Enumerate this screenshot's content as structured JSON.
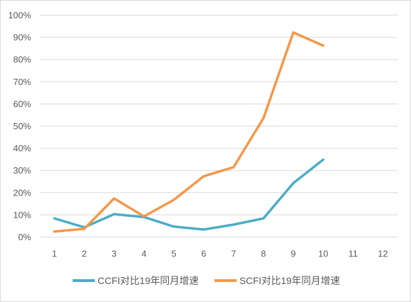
{
  "chart_data": {
    "type": "line",
    "categories": [
      "1",
      "2",
      "3",
      "4",
      "5",
      "6",
      "7",
      "8",
      "9",
      "10",
      "11",
      "12"
    ],
    "y_tick_labels": [
      "0%",
      "10%",
      "20%",
      "30%",
      "40%",
      "50%",
      "60%",
      "70%",
      "80%",
      "90%",
      "100%"
    ],
    "ylim": [
      0,
      100
    ],
    "grid": "horizontal",
    "legend_position": "bottom",
    "series": [
      {
        "name": "CCFI对比19年同月增速",
        "color": "#4BACC6",
        "values": [
          8.4,
          4.4,
          10.3,
          9.0,
          4.7,
          3.4,
          5.6,
          8.4,
          24.3,
          34.9,
          null,
          null
        ]
      },
      {
        "name": "SCFI对比19年同月增速",
        "color": "#F79646",
        "values": [
          2.5,
          3.7,
          17.4,
          9.3,
          16.8,
          27.4,
          31.5,
          53.6,
          92.2,
          86.3,
          null,
          null
        ]
      }
    ]
  }
}
